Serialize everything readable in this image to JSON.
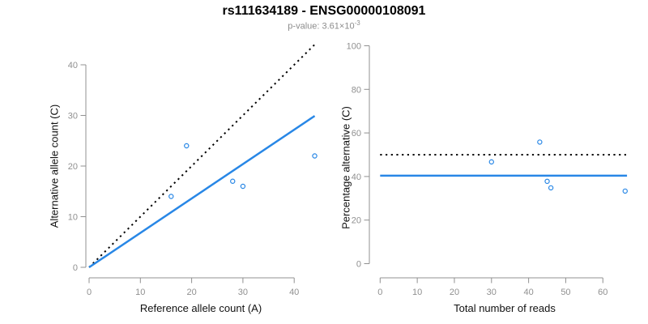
{
  "header": {
    "title": "rs111634189 - ENSG00000108091",
    "pvalue_label": "p-value: 3.61×10",
    "pvalue_exponent": "-3"
  },
  "colors": {
    "accent_blue": "#2887e6",
    "axis_gray": "#909090",
    "dotted_black": "#000000",
    "subtitle_gray": "#8c8c8c"
  },
  "chart_data": [
    {
      "type": "scatter",
      "panel": "left",
      "xlabel": "Reference allele count (A)",
      "ylabel": "Alternative allele count (C)",
      "xlim": [
        0,
        45
      ],
      "ylim": [
        0,
        44
      ],
      "xticks": [
        0,
        10,
        20,
        30,
        40
      ],
      "yticks": [
        0,
        10,
        20,
        30,
        40
      ],
      "grid": false,
      "points": [
        [
          16,
          14
        ],
        [
          19,
          24
        ],
        [
          28,
          17
        ],
        [
          30,
          16
        ],
        [
          44,
          22
        ]
      ],
      "lines": [
        {
          "name": "identity-line",
          "style": "dotted",
          "color": "black",
          "x1": 0,
          "y1": 0,
          "x2": 44.3,
          "y2": 44.3
        },
        {
          "name": "fit-line",
          "style": "solid",
          "color": "blue",
          "x1": 0,
          "y1": 0,
          "x2": 44,
          "y2": 29.9
        }
      ]
    },
    {
      "type": "scatter",
      "panel": "right",
      "xlabel": "Total number of reads",
      "ylabel": "Percentage alternative (C)",
      "xlim": [
        0,
        67
      ],
      "ylim": [
        0,
        100
      ],
      "xticks": [
        0,
        10,
        20,
        30,
        40,
        50,
        60
      ],
      "yticks": [
        0,
        20,
        40,
        60,
        80,
        100
      ],
      "grid": false,
      "points": [
        [
          30,
          46.7
        ],
        [
          43,
          55.8
        ],
        [
          45,
          37.8
        ],
        [
          46,
          34.8
        ],
        [
          66,
          33.3
        ]
      ],
      "lines": [
        {
          "name": "reference-50pct-line",
          "style": "dotted",
          "color": "black",
          "x1": 0,
          "y1": 50,
          "x2": 66.5,
          "y2": 50
        },
        {
          "name": "overall-percentage-line",
          "style": "solid",
          "color": "blue",
          "x1": 0,
          "y1": 40.4,
          "x2": 66.5,
          "y2": 40.4
        }
      ]
    }
  ]
}
